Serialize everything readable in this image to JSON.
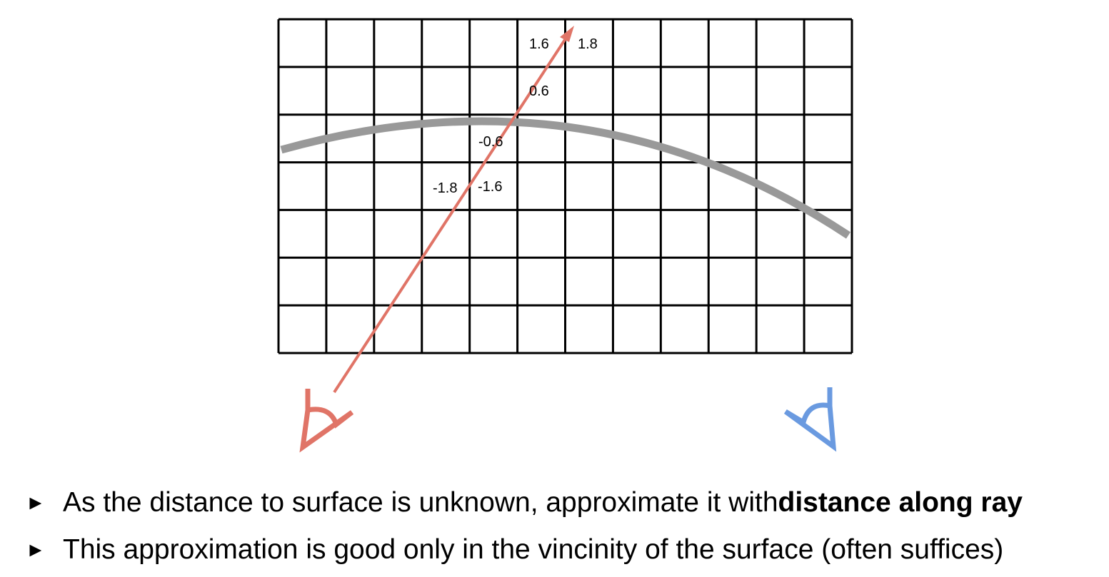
{
  "grid": {
    "columns": 12,
    "rows": 7
  },
  "colors": {
    "grid": "#000000",
    "surface": "#999999",
    "ray": "#e07467",
    "left_eye": "#e07467",
    "right_eye": "#6a9ae0"
  },
  "value_labels": [
    {
      "text": "1.6"
    },
    {
      "text": "1.8"
    },
    {
      "text": "0.6"
    },
    {
      "text": "-0.6"
    },
    {
      "text": "-1.8"
    },
    {
      "text": "-1.6"
    }
  ],
  "icons": {
    "left_eye": "eye-icon",
    "right_eye": "eye-icon"
  },
  "bullets": [
    {
      "marker": "►",
      "text": "As the distance to surface is unknown, approximate it with ",
      "bold": "distance along ray"
    },
    {
      "marker": "►",
      "text": "This approximation is good only in the vincinity of the surface (often suffices)",
      "bold": ""
    }
  ]
}
